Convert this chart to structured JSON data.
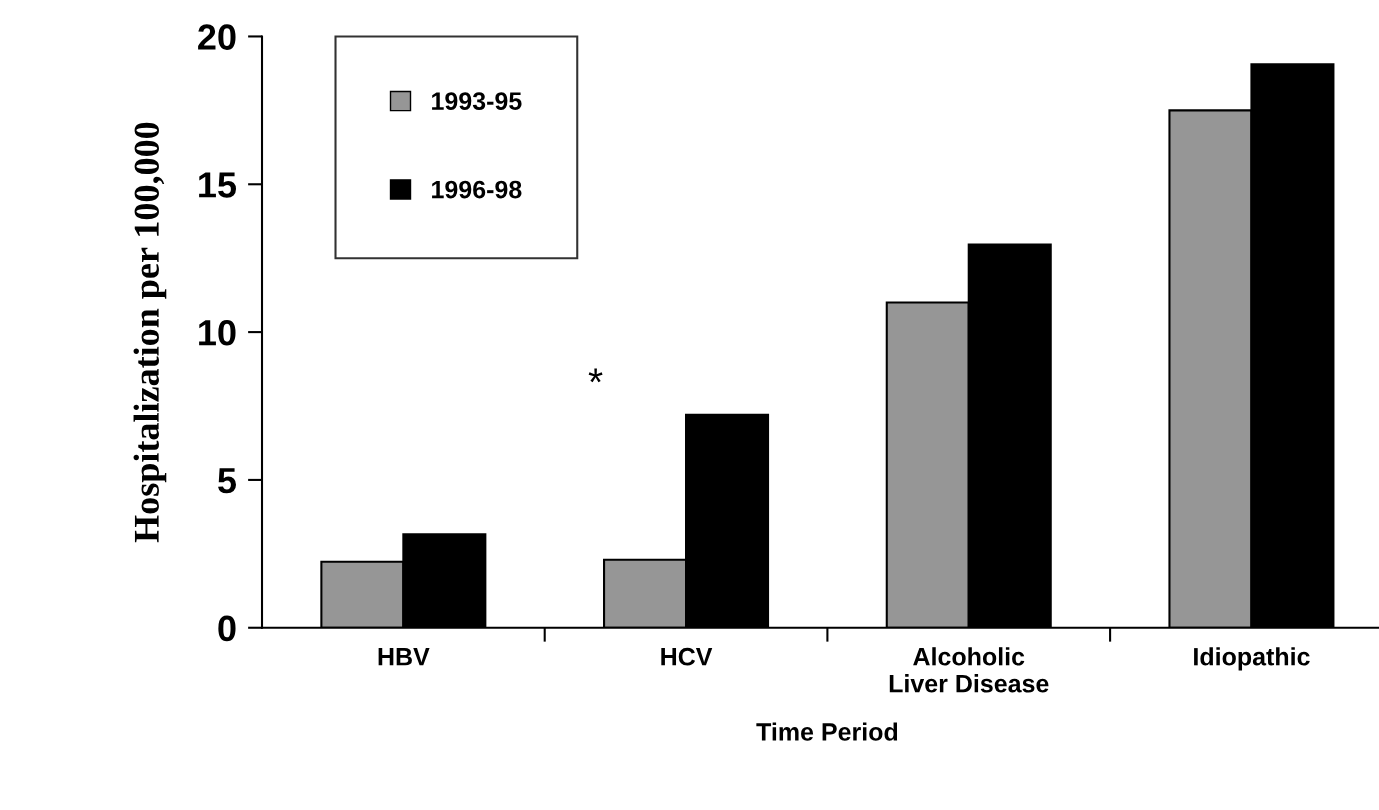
{
  "chart_data": {
    "type": "bar",
    "xlabel": "Time Period",
    "ylabel": "Hospitalization per 100,000",
    "categories": [
      "HBV",
      "HCV",
      "Alcoholic\nLiver Disease",
      "Idiopathic"
    ],
    "series": [
      {
        "name": "1993-95",
        "color": "#969696",
        "values": [
          2.23,
          2.3,
          11.0,
          17.5
        ]
      },
      {
        "name": "1996-98",
        "color": "#000000",
        "values": [
          3.16,
          7.2,
          12.96,
          19.06
        ]
      }
    ],
    "ylim": [
      0,
      20
    ],
    "yticks": [
      0,
      5,
      10,
      15,
      20
    ],
    "grid": false,
    "legend": "top left",
    "annotations": [
      "*"
    ]
  }
}
